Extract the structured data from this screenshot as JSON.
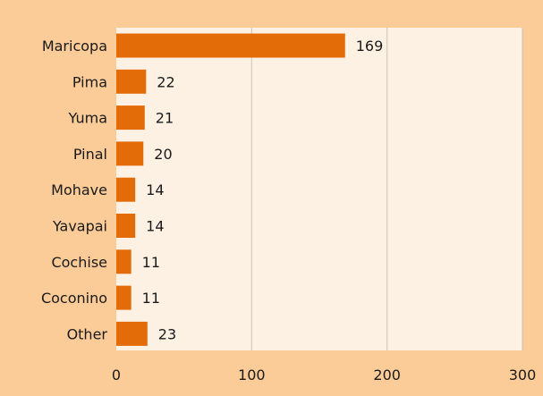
{
  "colors": {
    "page_background": "#FBCB98",
    "plot_background": "#FDF1E3",
    "bar": "#E36C09",
    "gridline": "#C9C3BD"
  },
  "chart_data": {
    "type": "bar",
    "orientation": "horizontal",
    "title": "",
    "xlabel": "",
    "ylabel": "",
    "categories": [
      "Maricopa",
      "Pima",
      "Yuma",
      "Pinal",
      "Mohave",
      "Yavapai",
      "Cochise",
      "Coconino",
      "Other"
    ],
    "values": [
      169,
      22,
      21,
      20,
      14,
      14,
      11,
      11,
      23
    ],
    "xlim": [
      0,
      300
    ],
    "xticks": [
      0,
      100,
      200,
      300
    ],
    "grid": "vertical",
    "legend": "none",
    "data_labels": true
  }
}
